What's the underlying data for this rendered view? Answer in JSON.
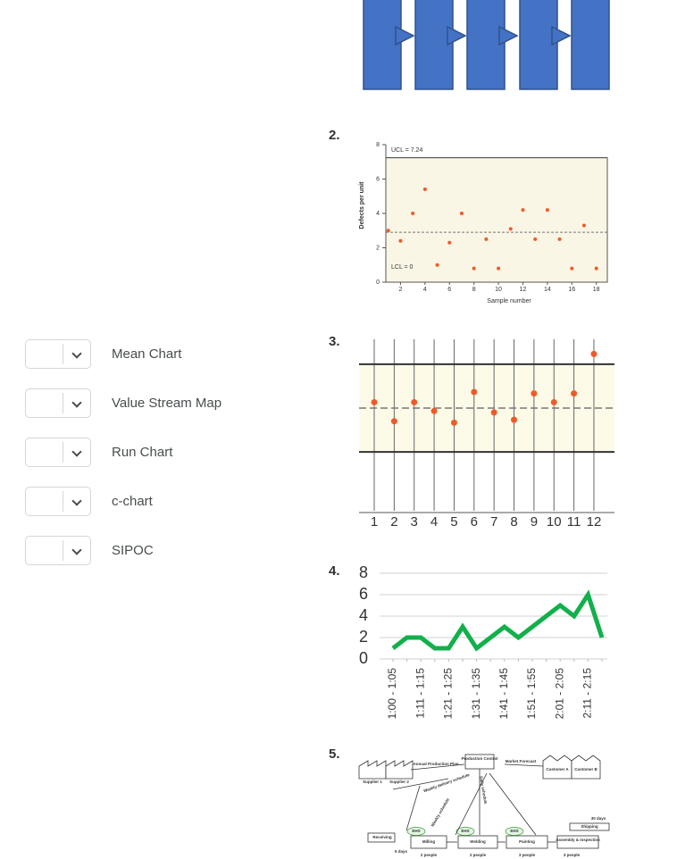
{
  "options": [
    "Mean Chart",
    "Value Stream Map",
    "Run Chart",
    "c-chart",
    "SIPOC"
  ],
  "figures": [
    {
      "number": "2.",
      "chart": {
        "type": "scatter",
        "ylabel": "Defects per unit",
        "xlabel": "Sample number",
        "annotations": [
          "UCL = 7.24",
          "LCL = 0"
        ],
        "ucl": 7.24,
        "lcl": 0,
        "center_line": 2.9,
        "color": "#f05a28",
        "x": [
          1,
          2,
          3,
          4,
          5,
          6,
          7,
          8,
          9,
          10,
          11,
          12,
          13,
          14,
          15,
          16,
          17,
          18
        ],
        "values": [
          3,
          2.4,
          4,
          5.4,
          1,
          2.3,
          4,
          0.8,
          2.5,
          0.8,
          3.1,
          4.2,
          2.5,
          4.2,
          2.5,
          0.8,
          3.3,
          0.8
        ],
        "xlim": [
          0.8,
          18.9
        ],
        "ylim": [
          0,
          8
        ],
        "xticks": [
          2,
          4,
          6,
          8,
          10,
          12,
          14,
          16,
          18
        ],
        "yticks": [
          0,
          2,
          4,
          6,
          8
        ]
      }
    },
    {
      "number": "3.",
      "chart": {
        "type": "control",
        "color": "#f05a28",
        "categories": [
          1,
          2,
          3,
          4,
          5,
          6,
          7,
          8,
          9,
          10,
          11,
          12
        ],
        "values": [
          5.4,
          4.1,
          5.4,
          4.8,
          4.0,
          6.1,
          4.7,
          4.2,
          6.0,
          5.4,
          6.0,
          8.7
        ],
        "ucl": 8,
        "center_line": 5,
        "lcl": 2,
        "ylim": [
          -2.2,
          9.7
        ]
      }
    },
    {
      "number": "4.",
      "chart": {
        "type": "line",
        "color": "#12b04b",
        "categories": [
          "1:00 - 1:05",
          null,
          "1:11 - 1:15",
          null,
          "1:21 - 1:25",
          null,
          "1:31 - 1:35",
          null,
          "1:41 - 1:45",
          null,
          "1:51 - 1:55",
          null,
          "2:01 - 2:05",
          null,
          "2:11 - 2:15",
          null
        ],
        "values": [
          1,
          2,
          2,
          1,
          1,
          3,
          1,
          2,
          3,
          2,
          3,
          4,
          5,
          4,
          6,
          2
        ],
        "ylim": [
          0,
          8
        ],
        "yticks": [
          0,
          2,
          4,
          6,
          8
        ],
        "grid": true
      }
    },
    {
      "number": "5.",
      "diagram": {
        "labels": [
          "Annual Production Plan",
          "Production Control",
          "Market Forecast",
          "Supplier 1",
          "Supplier 2",
          "Customer A",
          "Customer B",
          "Weekly delivery schedule",
          "Daily schedule",
          "Weekly schedule",
          "Receiving",
          "Milling",
          "Welding",
          "Painting",
          "Assembly & inspection",
          "Shipping",
          "EHS",
          "EHS",
          "EHS",
          "5 days",
          "30 days",
          "2 people",
          "2 people",
          "3 people",
          "3 people"
        ]
      }
    }
  ]
}
